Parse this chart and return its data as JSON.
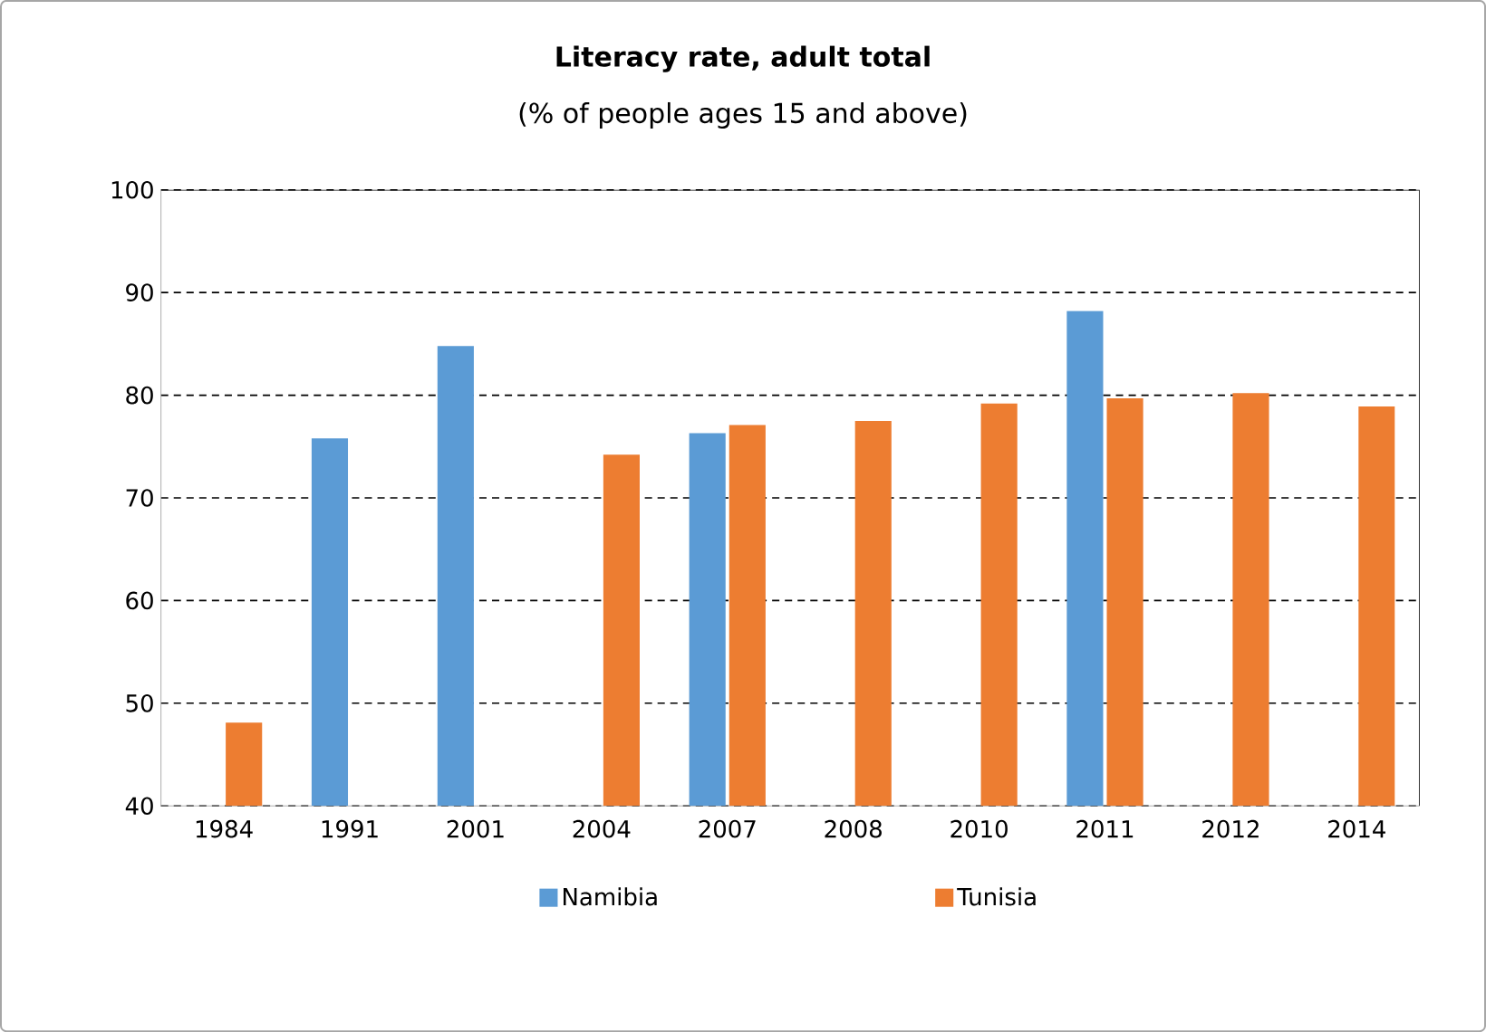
{
  "chart_data": {
    "type": "bar",
    "title": "Literacy rate, adult total",
    "subtitle": "(% of people ages 15 and above)",
    "categories": [
      "1984",
      "1991",
      "2001",
      "2004",
      "2007",
      "2008",
      "2010",
      "2011",
      "2012",
      "2014"
    ],
    "series": [
      {
        "name": "Namibia",
        "color": "#5b9bd5",
        "values": [
          null,
          75.8,
          84.8,
          null,
          76.3,
          null,
          null,
          88.2,
          null,
          null
        ]
      },
      {
        "name": "Tunisia",
        "color": "#ed7d31",
        "values": [
          48.1,
          null,
          null,
          74.2,
          77.1,
          77.5,
          79.2,
          79.7,
          80.2,
          78.9
        ]
      }
    ],
    "ylim": [
      40,
      100
    ],
    "yticks": [
      40,
      50,
      60,
      70,
      80,
      90,
      100
    ],
    "grid": "y",
    "legend": "bottom"
  }
}
